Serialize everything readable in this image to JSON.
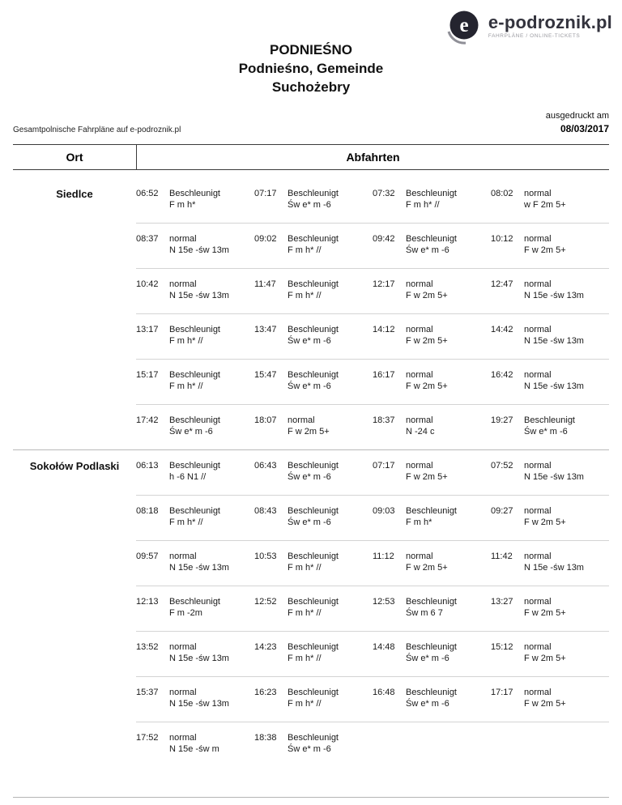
{
  "logo": {
    "text": "e-podroznik.pl",
    "tagline": "FAHRPLÄNE / ONLINE-TICKETS"
  },
  "title": {
    "line1": "PODNIEŚNO",
    "line2": "Podnieśno, Gemeinde",
    "line3": "Suchożebry"
  },
  "meta": {
    "left_note": "Gesamtpolnische Fahrpläne auf e-podroznik.pl",
    "printed_label": "ausgedruckt am",
    "printed_date": "08/03/2017"
  },
  "table": {
    "col_ort": "Ort",
    "col_abfahrten": "Abfahrten",
    "groups": [
      {
        "ort": "Siedlce",
        "rows": [
          [
            {
              "time": "06:52",
              "type": "Beschleunigt",
              "codes": "F m h*"
            },
            {
              "time": "07:17",
              "type": "Beschleunigt",
              "codes": "Św e* m -6"
            },
            {
              "time": "07:32",
              "type": "Beschleunigt",
              "codes": "F m h* //"
            },
            {
              "time": "08:02",
              "type": "normal",
              "codes": "w F 2m 5+"
            }
          ],
          [
            {
              "time": "08:37",
              "type": "normal",
              "codes": "N 15e -św 13m"
            },
            {
              "time": "09:02",
              "type": "Beschleunigt",
              "codes": "F m h* //"
            },
            {
              "time": "09:42",
              "type": "Beschleunigt",
              "codes": "Św e* m -6"
            },
            {
              "time": "10:12",
              "type": "normal",
              "codes": "F w 2m 5+"
            }
          ],
          [
            {
              "time": "10:42",
              "type": "normal",
              "codes": "N 15e -św 13m"
            },
            {
              "time": "11:47",
              "type": "Beschleunigt",
              "codes": "F m h* //"
            },
            {
              "time": "12:17",
              "type": "normal",
              "codes": "F w 2m 5+"
            },
            {
              "time": "12:47",
              "type": "normal",
              "codes": "N 15e -św 13m"
            }
          ],
          [
            {
              "time": "13:17",
              "type": "Beschleunigt",
              "codes": "F m h* //"
            },
            {
              "time": "13:47",
              "type": "Beschleunigt",
              "codes": "Św e* m -6"
            },
            {
              "time": "14:12",
              "type": "normal",
              "codes": "F w 2m 5+"
            },
            {
              "time": "14:42",
              "type": "normal",
              "codes": "N 15e -św 13m"
            }
          ],
          [
            {
              "time": "15:17",
              "type": "Beschleunigt",
              "codes": "F m h* //"
            },
            {
              "time": "15:47",
              "type": "Beschleunigt",
              "codes": "Św e* m -6"
            },
            {
              "time": "16:17",
              "type": "normal",
              "codes": "F w 2m 5+"
            },
            {
              "time": "16:42",
              "type": "normal",
              "codes": "N 15e -św 13m"
            }
          ],
          [
            {
              "time": "17:42",
              "type": "Beschleunigt",
              "codes": "Św e* m -6"
            },
            {
              "time": "18:07",
              "type": "normal",
              "codes": "F w 2m 5+"
            },
            {
              "time": "18:37",
              "type": "normal",
              "codes": "N -24 c"
            },
            {
              "time": "19:27",
              "type": "Beschleunigt",
              "codes": "Św e* m -6"
            }
          ]
        ]
      },
      {
        "ort": "Sokołów Podlaski",
        "rows": [
          [
            {
              "time": "06:13",
              "type": "Beschleunigt",
              "codes": "h -6 N1 //"
            },
            {
              "time": "06:43",
              "type": "Beschleunigt",
              "codes": "Św e* m -6"
            },
            {
              "time": "07:17",
              "type": "normal",
              "codes": "F w 2m 5+"
            },
            {
              "time": "07:52",
              "type": "normal",
              "codes": "N 15e -św 13m"
            }
          ],
          [
            {
              "time": "08:18",
              "type": "Beschleunigt",
              "codes": "F m h* //"
            },
            {
              "time": "08:43",
              "type": "Beschleunigt",
              "codes": "Św e* m -6"
            },
            {
              "time": "09:03",
              "type": "Beschleunigt",
              "codes": "F m h*"
            },
            {
              "time": "09:27",
              "type": "normal",
              "codes": "F w 2m 5+"
            }
          ],
          [
            {
              "time": "09:57",
              "type": "normal",
              "codes": "N 15e -św 13m"
            },
            {
              "time": "10:53",
              "type": "Beschleunigt",
              "codes": "F m h* //"
            },
            {
              "time": "11:12",
              "type": "normal",
              "codes": "F w 2m 5+"
            },
            {
              "time": "11:42",
              "type": "normal",
              "codes": "N 15e -św 13m"
            }
          ],
          [
            {
              "time": "12:13",
              "type": "Beschleunigt",
              "codes": "F m -2m"
            },
            {
              "time": "12:52",
              "type": "Beschleunigt",
              "codes": "F m h* //"
            },
            {
              "time": "12:53",
              "type": "Beschleunigt",
              "codes": "Św m 6 7"
            },
            {
              "time": "13:27",
              "type": "normal",
              "codes": "F w 2m 5+"
            }
          ],
          [
            {
              "time": "13:52",
              "type": "normal",
              "codes": "N 15e -św 13m"
            },
            {
              "time": "14:23",
              "type": "Beschleunigt",
              "codes": "F m h* //"
            },
            {
              "time": "14:48",
              "type": "Beschleunigt",
              "codes": "Św e* m -6"
            },
            {
              "time": "15:12",
              "type": "normal",
              "codes": "F w 2m 5+"
            }
          ],
          [
            {
              "time": "15:37",
              "type": "normal",
              "codes": "N 15e -św 13m"
            },
            {
              "time": "16:23",
              "type": "Beschleunigt",
              "codes": "F m h* //"
            },
            {
              "time": "16:48",
              "type": "Beschleunigt",
              "codes": "Św e* m -6"
            },
            {
              "time": "17:17",
              "type": "normal",
              "codes": "F w 2m 5+"
            }
          ],
          [
            {
              "time": "17:52",
              "type": "normal",
              "codes": "N 15e -św m"
            },
            {
              "time": "18:38",
              "type": "Beschleunigt",
              "codes": "Św e* m -6"
            }
          ]
        ]
      }
    ]
  }
}
